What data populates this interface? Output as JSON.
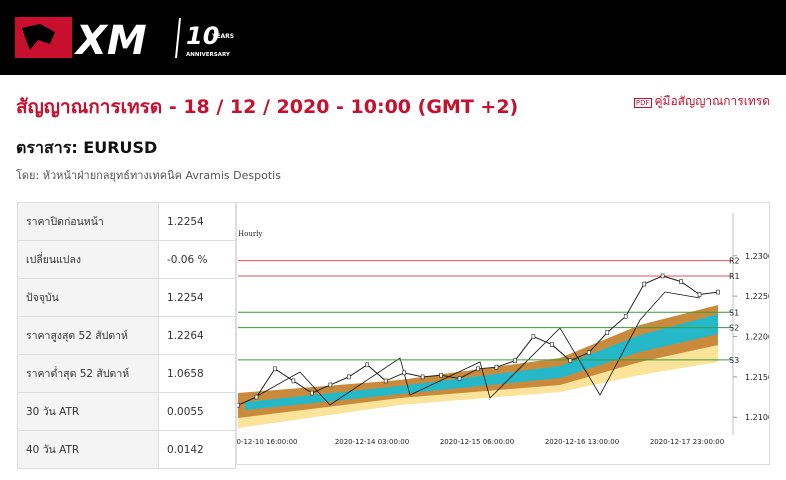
{
  "header": {
    "logo_text": "XM",
    "anniversary_number": "10",
    "anniversary_years": "YEARS",
    "anniversary_word": "ANNIVERSARY"
  },
  "page": {
    "title": "สัญญาณการเทรด - 18 / 12 / 2020 - 10:00 (GMT +2)",
    "guide_link": "คู่มือสัญญาณการเทรด",
    "instrument": "ตราสาร: EURUSD",
    "author": "โดย: หัวหน้าฝ่ายกลยุทธ์ทางเทคนิค Avramis Despotis"
  },
  "table": {
    "rows": [
      [
        "ราคาปิดก่อนหน้า",
        "1.2254"
      ],
      [
        "เปลี่ยนแปลง",
        "-0.06 %"
      ],
      [
        "ปัจจุบัน",
        "1.2254"
      ],
      [
        "ราคาสูงสุด 52 สัปดาห์",
        "1.2264"
      ],
      [
        "ราคาต่ำสุด 52 สัปดาห์",
        "1.0658"
      ],
      [
        "30 วัน ATR",
        "0.0055"
      ],
      [
        "40 วัน ATR",
        "0.0142"
      ]
    ]
  },
  "chart": {
    "type": "line",
    "timeframe": "Hourly",
    "ylim": [
      1.2078,
      1.2353
    ],
    "yticks": [
      {
        "value": 1.23,
        "label": "1.2300"
      },
      {
        "value": 1.225,
        "label": "1.2250"
      },
      {
        "value": 1.22,
        "label": "1.2200"
      },
      {
        "value": 1.215,
        "label": "1.2150"
      },
      {
        "value": 1.21,
        "label": "1.2100"
      }
    ],
    "x_labels": [
      "0-12-10 16:00:00",
      "2020-12-14 03:00:00",
      "2020-12-15 06:00:00",
      "2020-12-16 13:00:00",
      "2020-12-17 23:00:00"
    ],
    "levels": [
      {
        "name": "R2",
        "value": 1.2294,
        "color": "#e05050"
      },
      {
        "name": "R1",
        "value": 1.2275,
        "color": "#e05050"
      },
      {
        "name": "S1",
        "value": 1.223,
        "color": "#3a9a3a"
      },
      {
        "name": "S2",
        "value": 1.2211,
        "color": "#3a9a3a"
      },
      {
        "name": "S3",
        "value": 1.2171,
        "color": "#3a9a3a"
      }
    ],
    "closes": [
      1.2115,
      1.2125,
      1.216,
      1.2145,
      1.213,
      1.214,
      1.215,
      1.2165,
      1.2145,
      1.2155,
      1.215,
      1.2152,
      1.2148,
      1.216,
      1.2162,
      1.217,
      1.22,
      1.219,
      1.217,
      1.218,
      1.2205,
      1.2225,
      1.2265,
      1.2275,
      1.2268,
      1.2252,
      1.2255
    ],
    "color": "#222222"
  }
}
